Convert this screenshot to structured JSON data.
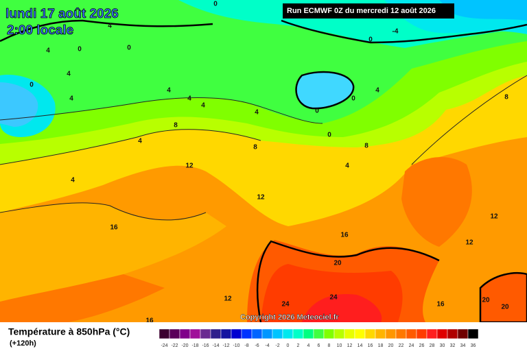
{
  "header": {
    "date": "lundi 17 août 2026",
    "time": "2:00 locale",
    "run": "Run ECMWF 0Z du mercredi 12 août 2026",
    "copyright": "Copyright 2026 Meteociel.fr"
  },
  "footer": {
    "title": "Température à 850hPa (°C)",
    "lead": "(+120h)"
  },
  "colorbar": {
    "ticks": [
      -24,
      -22,
      -20,
      -18,
      -16,
      -14,
      -12,
      -10,
      -8,
      -6,
      -4,
      -2,
      0,
      2,
      4,
      6,
      8,
      10,
      12,
      14,
      16,
      18,
      20,
      22,
      24,
      26,
      28,
      30,
      32,
      34,
      36
    ],
    "colors": [
      "#3c0030",
      "#5a005a",
      "#80008a",
      "#a0109a",
      "#6a2a90",
      "#30208c",
      "#1414a0",
      "#0000d0",
      "#0032ff",
      "#0064ff",
      "#0096ff",
      "#00c4ff",
      "#00e8ee",
      "#00ffc8",
      "#00ff80",
      "#40ff40",
      "#80ff00",
      "#b8ff00",
      "#e8ff00",
      "#ffff00",
      "#ffd800",
      "#ffb400",
      "#ff9600",
      "#ff7800",
      "#ff5a00",
      "#ff3c00",
      "#ff1e1e",
      "#e00000",
      "#b00000",
      "#700000",
      "#000000"
    ]
  },
  "map": {
    "contour_labels": [
      0,
      4,
      -4,
      0,
      4,
      0,
      0,
      4,
      0,
      4,
      4,
      4,
      4,
      4,
      0,
      0,
      4,
      8,
      8,
      4,
      0,
      8,
      8,
      4,
      12,
      4,
      12,
      16,
      12,
      16,
      12,
      20,
      12,
      24,
      24,
      16,
      20,
      20,
      16
    ]
  }
}
